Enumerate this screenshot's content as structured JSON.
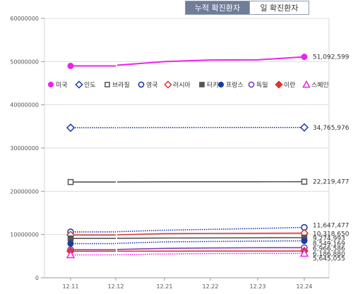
{
  "tabs": [
    {
      "label": "누적 확진환자",
      "active": true
    },
    {
      "label": "일 확진환자",
      "active": false
    }
  ],
  "chart_data": {
    "type": "line",
    "categories": [
      "12.11",
      "12.12",
      "12.21",
      "12.22",
      "12.23",
      "12.24"
    ],
    "ylim": [
      0,
      60000000
    ],
    "yticks": [
      0,
      10000000,
      20000000,
      30000000,
      40000000,
      50000000,
      60000000
    ],
    "ytick_labels": [
      "0",
      "10000000",
      "20000000",
      "30000000",
      "40000000",
      "50000000",
      "60000000"
    ],
    "grid": true,
    "legend_position": "top",
    "series": [
      {
        "name": "미국",
        "values": [
          49000000,
          49000000,
          50000000,
          50350000,
          50400000,
          51092599
        ],
        "end_label": "51,092,599",
        "color": "#ee22ee",
        "marker": "filled-circle",
        "dash": "solid"
      },
      {
        "name": "인도",
        "values": [
          34700000,
          34700000,
          34740000,
          34750000,
          34755000,
          34765976
        ],
        "end_label": "34,765,976",
        "color": "#1c3aa9",
        "marker": "open-diamond",
        "dash": "dotted"
      },
      {
        "name": "브라질",
        "values": [
          22150000,
          22150000,
          22200000,
          22205000,
          22212000,
          22219477
        ],
        "end_label": "22,219,477",
        "color": "#555555",
        "marker": "open-square",
        "dash": "solid"
      },
      {
        "name": "영국",
        "values": [
          10600000,
          10600000,
          11000000,
          11200000,
          11400000,
          11647477
        ],
        "end_label": "11,647,477",
        "color": "#1c3aa9",
        "marker": "open-circle",
        "dash": "dotted"
      },
      {
        "name": "러시아",
        "values": [
          9900000,
          9900000,
          10200000,
          10250000,
          10290000,
          10318650
        ],
        "end_label": "10,318,650",
        "color": "#dd3333",
        "marker": "open-diamond",
        "dash": "solid"
      },
      {
        "name": "터키",
        "values": [
          9100000,
          9100000,
          9200000,
          9230000,
          9250000,
          9274993
        ],
        "end_label": "9,274,993",
        "color": "#555555",
        "marker": "filled-square",
        "dash": "solid"
      },
      {
        "name": "프랑스",
        "values": [
          7900000,
          7900000,
          8300000,
          8400000,
          8480000,
          8549169
        ],
        "end_label": "8,549,169",
        "color": "#1c3aa9",
        "marker": "filled-circle",
        "dash": "dotted"
      },
      {
        "name": "독일",
        "values": [
          6500000,
          6500000,
          6800000,
          6900000,
          6950000,
          6966586
        ],
        "end_label": "6,966,586",
        "color": "#7b3fb8",
        "marker": "open-circle",
        "dash": "solid"
      },
      {
        "name": "이란",
        "values": [
          6150000,
          6150000,
          6170000,
          6178000,
          6182000,
          6186880
        ],
        "end_label": "6,186,880",
        "color": "#dd3333",
        "marker": "filled-diamond",
        "dash": "solid"
      },
      {
        "name": "스페인",
        "values": [
          5300000,
          5300000,
          5500000,
          5600000,
          5630000,
          5645055
        ],
        "end_label": "5,645,055",
        "color": "#ee22ee",
        "marker": "open-triangle",
        "dash": "dotted"
      }
    ]
  }
}
